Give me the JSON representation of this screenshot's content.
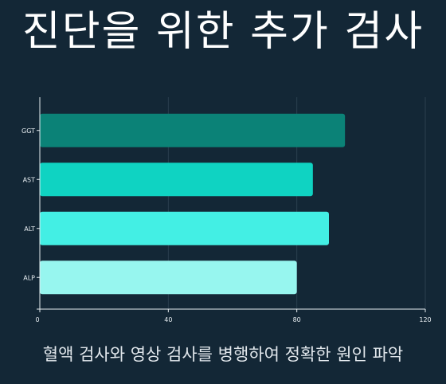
{
  "title": "진단을 위한 추가 검사",
  "caption": "혈액 검사와 영상 검사를 병행하여 정확한 원인 파악",
  "chart_data": {
    "type": "bar",
    "orientation": "horizontal",
    "categories": [
      "GGT",
      "AST",
      "ALT",
      "ALP"
    ],
    "values": [
      95,
      85,
      90,
      80
    ],
    "colors": [
      "#0b8277",
      "#0fd3c2",
      "#43efe4",
      "#97f6ef"
    ],
    "xlim": [
      0,
      120
    ],
    "xticks": [
      0,
      40,
      80,
      120
    ],
    "grid": true,
    "title": "",
    "xlabel": "",
    "ylabel": ""
  }
}
